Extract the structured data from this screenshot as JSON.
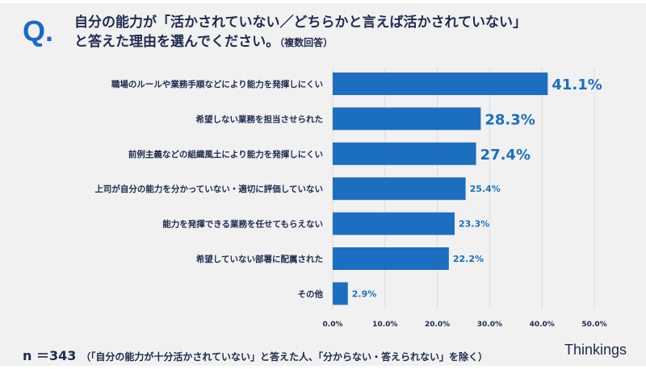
{
  "header": {
    "q_mark": "Q.",
    "title_line1": "自分の能力が「活かされていない／どちらかと言えば活かされていない」",
    "title_line2": "と答えた理由を選んでください。",
    "title_note": "（複数回答）"
  },
  "chart_data": {
    "type": "bar",
    "orientation": "horizontal",
    "categories": [
      "職場のルールや業務手順などにより能力を発揮しにくい",
      "希望しない業務を担当させられた",
      "前例主義などの組織風土により能力を発揮しにくい",
      "上司が自分の能力を分かっていない・適切に評価していない",
      "能力を発揮できる業務を任せてもらえない",
      "希望していない部署に配属された",
      "その他"
    ],
    "values": [
      41.1,
      28.3,
      27.4,
      25.4,
      23.3,
      22.2,
      2.9
    ],
    "value_labels": [
      "41.1%",
      "28.3%",
      "27.4%",
      "25.4%",
      "23.3%",
      "22.2%",
      "2.9%"
    ],
    "xlim": [
      0,
      50
    ],
    "xticks": [
      "0.0%",
      "10.0%",
      "20.0%",
      "30.0%",
      "40.0%",
      "50.0%"
    ],
    "grid": true,
    "bar_color": "#1c6fc0"
  },
  "footer": {
    "n": "n ＝343",
    "note": "（「自分の能力が十分活かされていない」と答えた人、「分からない・答えられない」を除く）",
    "brand": "Thinkings"
  }
}
